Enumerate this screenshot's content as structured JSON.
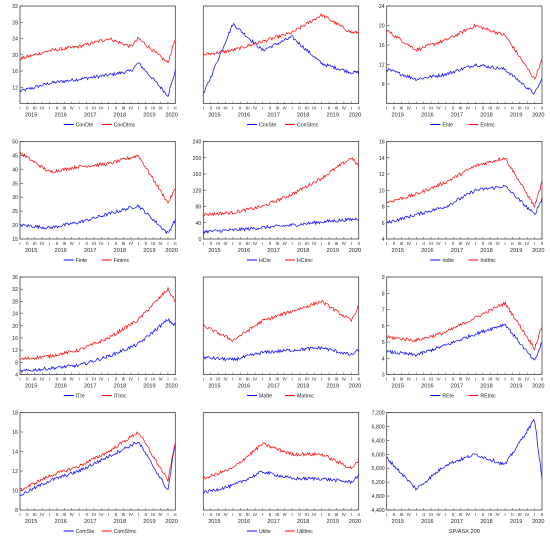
{
  "figure": {
    "layout": "4 rows x 3 columns of line charts",
    "series_colors": {
      "A": "#0000ff",
      "B": "#ff0000",
      "single": "#0000ff"
    }
  },
  "chart_data": [
    {
      "type": "line",
      "xlabels": [
        "2015",
        "2016",
        "2017",
        "2018",
        "2019",
        "2020"
      ],
      "quarter_labels": [
        "I",
        "II",
        "III",
        "IV"
      ],
      "ylim": [
        8,
        32
      ],
      "yticks": [
        12,
        16,
        20,
        24,
        28,
        32
      ],
      "x": [
        "2015Q1",
        "2016Q1",
        "2017Q1",
        "2018Q1",
        "2018Q4",
        "2019Q1",
        "2020Q1",
        "2020Q2"
      ],
      "series": [
        {
          "name": "ConDte",
          "values": [
            11,
            13,
            14,
            15,
            16,
            18,
            10,
            16
          ]
        },
        {
          "name": "ConDImc",
          "values": [
            19,
            21,
            22,
            24,
            22,
            24,
            18,
            24
          ]
        }
      ]
    },
    {
      "type": "line",
      "xlabels": [
        "2015",
        "2016",
        "2017",
        "2018",
        "2019",
        "2020"
      ],
      "quarter_labels": [
        "I",
        "II",
        "III",
        "IV"
      ],
      "ylim": [
        10,
        32
      ],
      "yticks": [],
      "x": [
        "2015Q1",
        "2016Q1",
        "2017Q1",
        "2018Q1",
        "2019Q1",
        "2020Q1"
      ],
      "series": [
        {
          "name": "ConSte",
          "values": [
            12,
            28,
            22,
            25,
            19,
            17
          ]
        },
        {
          "name": "ConSImc",
          "values": [
            21,
            22,
            24,
            26,
            30,
            26
          ]
        }
      ]
    },
    {
      "type": "line",
      "xlabels": [
        "2015",
        "2016",
        "2017",
        "2018",
        "2019",
        "2020"
      ],
      "quarter_labels": [
        "I",
        "II",
        "III",
        "IV"
      ],
      "ylim": [
        4,
        24
      ],
      "yticks": [
        8,
        12,
        16,
        20,
        24
      ],
      "x": [
        "2015Q1",
        "2016Q1",
        "2017Q1",
        "2018Q1",
        "2019Q1",
        "2020Q1",
        "2020Q2"
      ],
      "series": [
        {
          "name": "Ente",
          "values": [
            11,
            9,
            10,
            12,
            11,
            6,
            9
          ]
        },
        {
          "name": "EnImc",
          "values": [
            19,
            15,
            17,
            20,
            18,
            9,
            13
          ]
        }
      ]
    },
    {
      "type": "line",
      "xlabels": [
        "2015",
        "2016",
        "2017",
        "2018",
        "2019",
        "2020"
      ],
      "quarter_labels": [
        "I",
        "II",
        "III",
        "IV"
      ],
      "ylim": [
        15,
        50
      ],
      "yticks": [
        15,
        20,
        25,
        30,
        35,
        40,
        45,
        50
      ],
      "x": [
        "2015Q1",
        "2016Q1",
        "2017Q1",
        "2018Q1",
        "2019Q1",
        "2020Q1",
        "2020Q2"
      ],
      "series": [
        {
          "name": "Finte",
          "values": [
            20,
            19,
            21,
            24,
            27,
            17,
            22
          ]
        },
        {
          "name": "FinImc",
          "values": [
            46,
            39,
            41,
            42,
            45,
            28,
            33
          ]
        }
      ]
    },
    {
      "type": "line",
      "xlabels": [
        "2015",
        "2016",
        "2017",
        "2018",
        "2019",
        "2020"
      ],
      "quarter_labels": [
        "I",
        "II",
        "III",
        "IV"
      ],
      "ylim": [
        0,
        240
      ],
      "yticks": [
        0,
        40,
        80,
        120,
        160,
        200,
        240
      ],
      "x": [
        "2015Q1",
        "2016Q1",
        "2017Q1",
        "2018Q1",
        "2019Q1",
        "2020Q1",
        "2020Q2"
      ],
      "series": [
        {
          "name": "HCte",
          "values": [
            18,
            22,
            28,
            34,
            42,
            48,
            50
          ]
        },
        {
          "name": "HCImc",
          "values": [
            60,
            65,
            80,
            110,
            150,
            200,
            180
          ]
        }
      ]
    },
    {
      "type": "line",
      "xlabels": [
        "2015",
        "2016",
        "2017",
        "2018",
        "2019",
        "2020"
      ],
      "quarter_labels": [
        "I",
        "II",
        "III",
        "IV"
      ],
      "ylim": [
        4,
        16
      ],
      "yticks": [
        4,
        6,
        8,
        10,
        12,
        14,
        16
      ],
      "x": [
        "2015Q1",
        "2016Q1",
        "2017Q1",
        "2018Q1",
        "2019Q1",
        "2020Q1",
        "2020Q2"
      ],
      "series": [
        {
          "name": "Indte",
          "values": [
            6,
            7,
            8,
            10,
            10.5,
            7,
            9
          ]
        },
        {
          "name": "IndImc",
          "values": [
            8.5,
            9.5,
            11,
            13,
            14,
            8,
            11
          ]
        }
      ]
    },
    {
      "type": "line",
      "xlabels": [
        "2015",
        "2016",
        "2017",
        "2018",
        "2019",
        "2020"
      ],
      "quarter_labels": [
        "I",
        "II",
        "III",
        "IV"
      ],
      "ylim": [
        4,
        36
      ],
      "yticks": [
        4,
        8,
        12,
        16,
        20,
        24,
        28,
        32,
        36
      ],
      "x": [
        "2015Q1",
        "2016Q1",
        "2017Q1",
        "2018Q1",
        "2019Q1",
        "2020Q1",
        "2020Q2"
      ],
      "series": [
        {
          "name": "ITte",
          "values": [
            5,
            6,
            7,
            10,
            14,
            22,
            20
          ]
        },
        {
          "name": "ITImc",
          "values": [
            9,
            10,
            12,
            16,
            22,
            32,
            28
          ]
        }
      ]
    },
    {
      "type": "line",
      "xlabels": [
        "2015",
        "2016",
        "2017",
        "2018",
        "2019",
        "2020"
      ],
      "quarter_labels": [
        "I",
        "II",
        "III",
        "IV"
      ],
      "ylim": [
        0,
        40
      ],
      "yticks": [],
      "x": [
        "2015Q1",
        "2016Q1",
        "2017Q1",
        "2018Q1",
        "2019Q1",
        "2020Q1",
        "2020Q2"
      ],
      "series": [
        {
          "name": "Matte",
          "values": [
            7,
            6,
            9,
            10,
            11,
            8,
            10
          ]
        },
        {
          "name": "MatImc",
          "values": [
            20,
            14,
            22,
            26,
            30,
            22,
            28
          ]
        }
      ]
    },
    {
      "type": "line",
      "xlabels": [
        "2015",
        "2016",
        "2017",
        "2018",
        "2019",
        "2020"
      ],
      "quarter_labels": [
        "I",
        "II",
        "III",
        "IV"
      ],
      "ylim": [
        3,
        9
      ],
      "yticks": [
        3,
        4,
        5,
        6,
        7,
        8,
        9
      ],
      "x": [
        "2015Q1",
        "2016Q1",
        "2017Q1",
        "2018Q1",
        "2019Q1",
        "2020Q1",
        "2020Q2"
      ],
      "series": [
        {
          "name": "REte",
          "values": [
            4.4,
            4.2,
            4.8,
            5.5,
            6.1,
            3.8,
            5
          ]
        },
        {
          "name": "REImc",
          "values": [
            5.3,
            5.1,
            5.6,
            6.5,
            7.4,
            4.6,
            6
          ]
        }
      ]
    },
    {
      "type": "line",
      "xlabels": [
        "2015",
        "2016",
        "2017",
        "2018",
        "2019",
        "2020"
      ],
      "quarter_labels": [
        "I",
        "II",
        "III",
        "IV"
      ],
      "ylim": [
        8,
        18
      ],
      "yticks": [
        8,
        10,
        12,
        14,
        16,
        18
      ],
      "x": [
        "2015Q1",
        "2016Q1",
        "2017Q1",
        "2018Q1",
        "2019Q1",
        "2020Q1",
        "2020Q2"
      ],
      "series": [
        {
          "name": "ComSte",
          "values": [
            9.5,
            11,
            12,
            13.5,
            15,
            10,
            15
          ]
        },
        {
          "name": "ComSImc",
          "values": [
            10,
            11.5,
            12.5,
            14,
            16,
            11,
            15
          ]
        }
      ]
    },
    {
      "type": "line",
      "xlabels": [
        "2015",
        "2016",
        "2017",
        "2018",
        "2019",
        "2020"
      ],
      "quarter_labels": [
        "I",
        "II",
        "III",
        "IV"
      ],
      "ylim": [
        4,
        18
      ],
      "yticks": [],
      "x": [
        "2015Q1",
        "2016Q1",
        "2017Q1",
        "2018Q1",
        "2019Q1",
        "2020Q1",
        "2020Q2"
      ],
      "series": [
        {
          "name": "Utilte",
          "values": [
            6.5,
            7.5,
            9.5,
            8.5,
            8.5,
            8,
            9
          ]
        },
        {
          "name": "UtilImc",
          "values": [
            8.5,
            10,
            13.5,
            12,
            12,
            10,
            11
          ]
        }
      ]
    },
    {
      "type": "line",
      "xlabels": [
        "2015",
        "2016",
        "2017",
        "2018",
        "2019",
        "2020"
      ],
      "quarter_labels": [
        "I",
        "II",
        "III",
        "IV"
      ],
      "ylim": [
        4400,
        7200
      ],
      "yticks": [
        4400,
        4800,
        5200,
        5600,
        6000,
        6400,
        6800,
        7200
      ],
      "xaxis_title": "SP/ASX 200",
      "x": [
        "2015Q1",
        "2016Q1",
        "2017Q1",
        "2018Q1",
        "2019Q1",
        "2020Q1",
        "2020Q2"
      ],
      "series": [
        {
          "values": [
            5900,
            5000,
            5700,
            6000,
            5700,
            7000,
            5300
          ]
        }
      ]
    }
  ]
}
